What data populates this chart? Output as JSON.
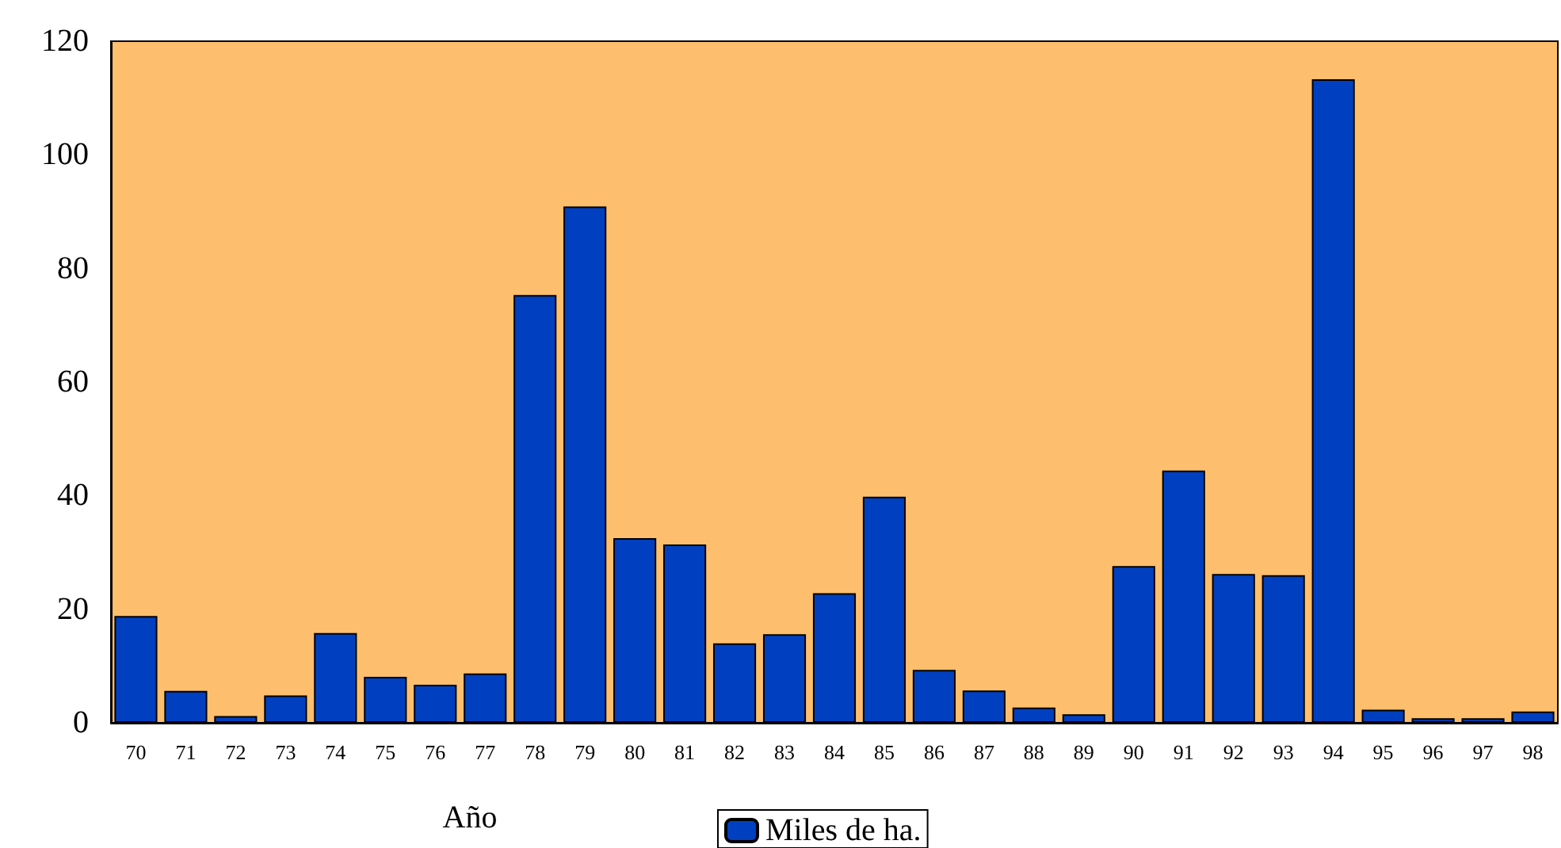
{
  "chart_data": {
    "type": "bar",
    "xlabel": "Año",
    "categories": [
      "70",
      "71",
      "72",
      "73",
      "74",
      "75",
      "76",
      "77",
      "78",
      "79",
      "80",
      "81",
      "82",
      "83",
      "84",
      "85",
      "86",
      "87",
      "88",
      "89",
      "90",
      "91",
      "92",
      "93",
      "94",
      "95",
      "96",
      "97",
      "98"
    ],
    "series": [
      {
        "name": "Miles de ha.",
        "color": "#0040c0",
        "values": [
          18.8,
          5.6,
          1.2,
          4.8,
          15.8,
          8.1,
          6.7,
          8.7,
          75.3,
          90.9,
          32.5,
          31.4,
          14.0,
          15.6,
          22.8,
          39.8,
          9.3,
          5.7,
          2.7,
          1.5,
          27.6,
          44.4,
          26.2,
          26.0,
          113.3,
          2.3,
          0.8,
          0.8,
          2.0
        ]
      }
    ],
    "ylim": [
      0,
      120
    ],
    "yticks": [
      0,
      20,
      40,
      60,
      80,
      100,
      120
    ],
    "grid": false,
    "legend": "bottom"
  }
}
